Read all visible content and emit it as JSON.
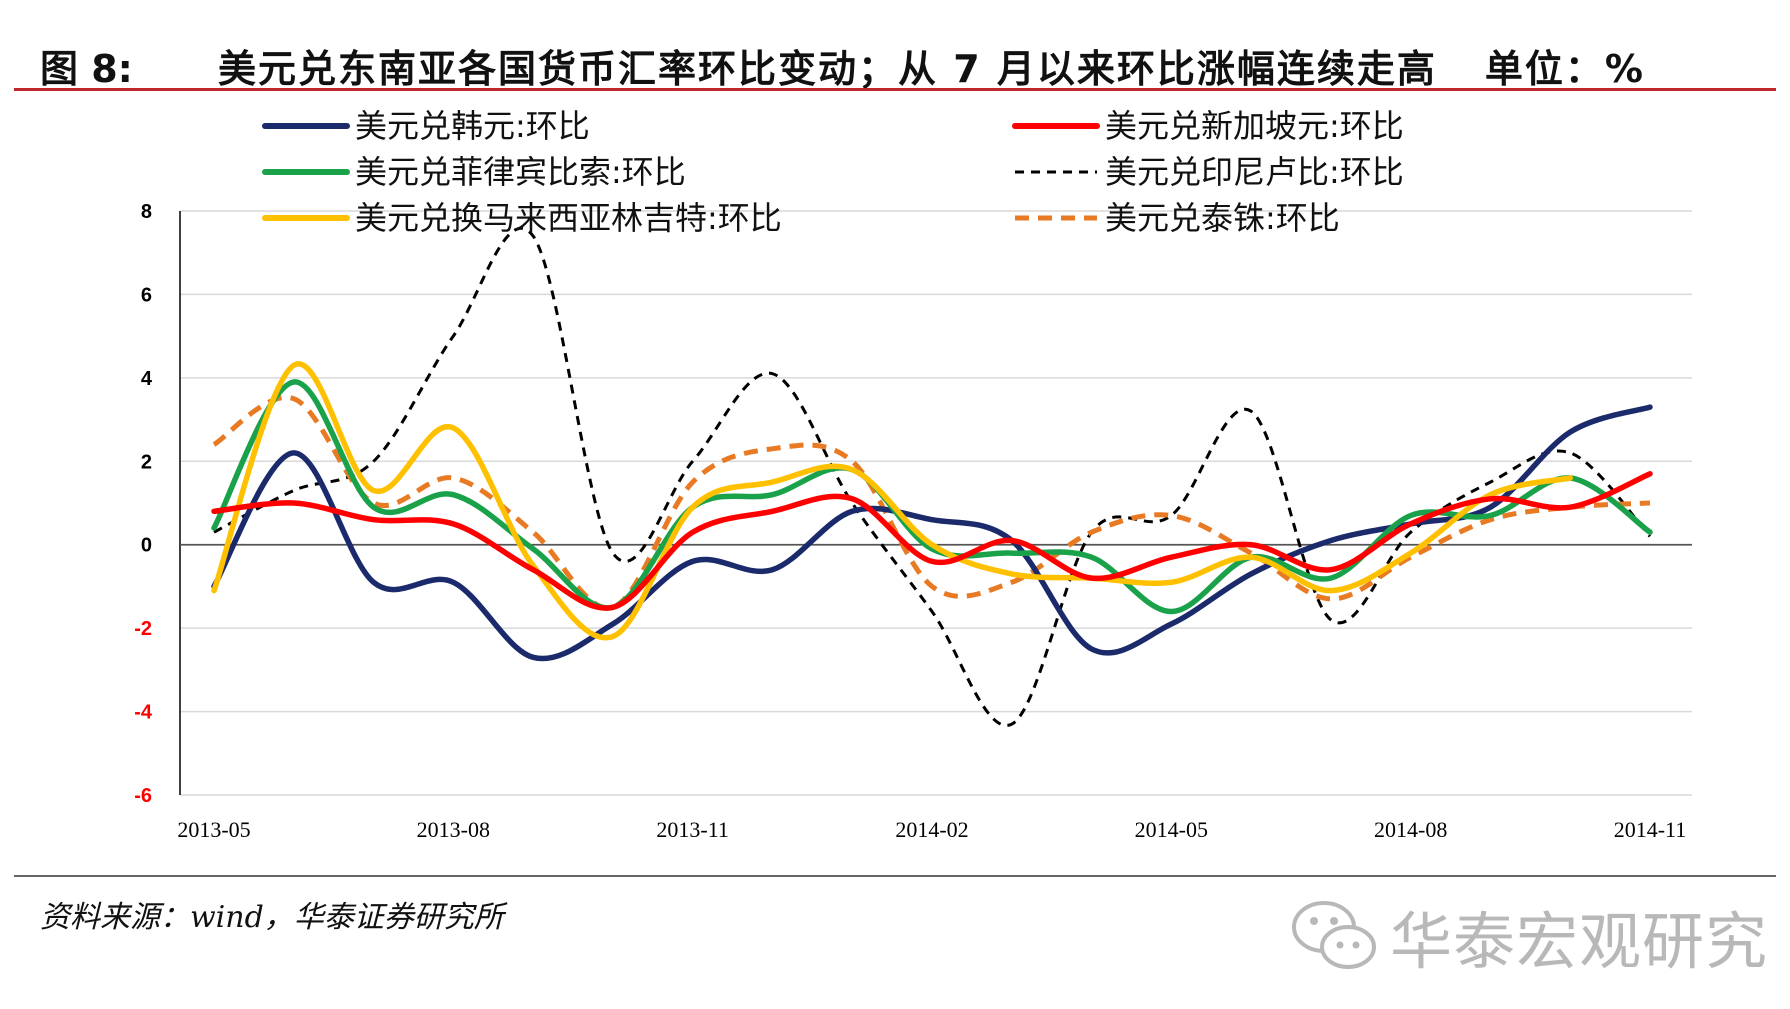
{
  "header": {
    "figure_label": "图 8:",
    "title": "美元兑东南亚各国货币汇率环比变动；从 7 月以来环比涨幅连续走高",
    "unit": "单位：%"
  },
  "source": "资料来源：wind，华泰证券研究所",
  "watermark": "华泰宏观研究",
  "chart_data": {
    "type": "line",
    "title": "美元兑东南亚各国货币汇率环比变动；从 7 月以来环比涨幅连续走高",
    "xlabel": "",
    "ylabel": "单位：%",
    "ylim": [
      -6,
      8
    ],
    "yticks": [
      "8",
      "6",
      "4",
      "2",
      "0",
      "-2",
      "-4",
      "-6"
    ],
    "ytick_values": [
      8,
      6,
      4,
      2,
      0,
      -2,
      -4,
      -6
    ],
    "xticks": [
      "2013-05",
      "2013-08",
      "2013-11",
      "2014-02",
      "2014-05",
      "2014-08",
      "2014-11"
    ],
    "xtick_index": [
      0,
      3,
      6,
      9,
      12,
      15,
      18
    ],
    "categories": [
      "2013-05",
      "2013-06",
      "2013-07",
      "2013-08",
      "2013-09",
      "2013-10",
      "2013-11",
      "2013-12",
      "2014-01",
      "2014-02",
      "2014-03",
      "2014-04",
      "2014-05",
      "2014-06",
      "2014-07",
      "2014-08",
      "2014-09",
      "2014-10",
      "2014-11"
    ],
    "grid": true,
    "legend_position": "top",
    "colors": {
      "axis": "#000000",
      "grid": "#d9d9d9",
      "negative_tick": "#ff0000",
      "positive_tick": "#000000"
    },
    "series": [
      {
        "name": "美元兑韩元:环比",
        "color": "#1b2a6b",
        "style": "solid",
        "values": [
          -1.0,
          2.2,
          -0.9,
          -0.9,
          -2.7,
          -1.9,
          -0.4,
          -0.6,
          0.8,
          0.6,
          0.1,
          -2.5,
          -1.9,
          -0.7,
          0.1,
          0.5,
          0.9,
          2.7,
          3.3
        ]
      },
      {
        "name": "美元兑新加坡元:环比",
        "color": "#ff0000",
        "style": "solid",
        "values": [
          0.8,
          1.0,
          0.6,
          0.5,
          -0.6,
          -1.5,
          0.3,
          0.8,
          1.1,
          -0.4,
          0.1,
          -0.8,
          -0.3,
          0.0,
          -0.6,
          0.5,
          1.1,
          0.9,
          1.7
        ]
      },
      {
        "name": "美元兑菲律宾比索:环比",
        "color": "#1aa24b",
        "style": "solid",
        "values": [
          0.4,
          3.9,
          0.9,
          1.2,
          -0.1,
          -1.5,
          0.9,
          1.2,
          1.8,
          -0.1,
          -0.2,
          -0.3,
          -1.6,
          -0.3,
          -0.8,
          0.7,
          0.7,
          1.6,
          0.3
        ]
      },
      {
        "name": "美元兑印尼卢比:环比",
        "color": "#000000",
        "style": "dashed",
        "values": [
          0.3,
          1.3,
          2.0,
          5.0,
          7.4,
          -0.2,
          2.0,
          4.1,
          1.0,
          -1.6,
          -4.3,
          0.3,
          0.7,
          3.2,
          -1.8,
          0.3,
          1.5,
          2.2,
          0.2
        ]
      },
      {
        "name": "美元兑换马来西亚林吉特:环比",
        "color": "#ffc000",
        "style": "solid",
        "values": [
          -1.1,
          4.3,
          1.3,
          2.8,
          -0.5,
          -2.2,
          0.9,
          1.5,
          1.8,
          0.0,
          -0.7,
          -0.8,
          -0.9,
          -0.3,
          -1.1,
          -0.2,
          1.2,
          1.6,
          null
        ]
      },
      {
        "name": "美元兑泰铢:环比",
        "color": "#e97a24",
        "style": "dashed",
        "values": [
          2.4,
          3.5,
          1.0,
          1.6,
          0.3,
          -1.5,
          1.5,
          2.3,
          2.0,
          -1.0,
          -0.9,
          0.3,
          0.7,
          -0.2,
          -1.3,
          -0.3,
          0.6,
          0.9,
          1.0
        ]
      }
    ]
  }
}
